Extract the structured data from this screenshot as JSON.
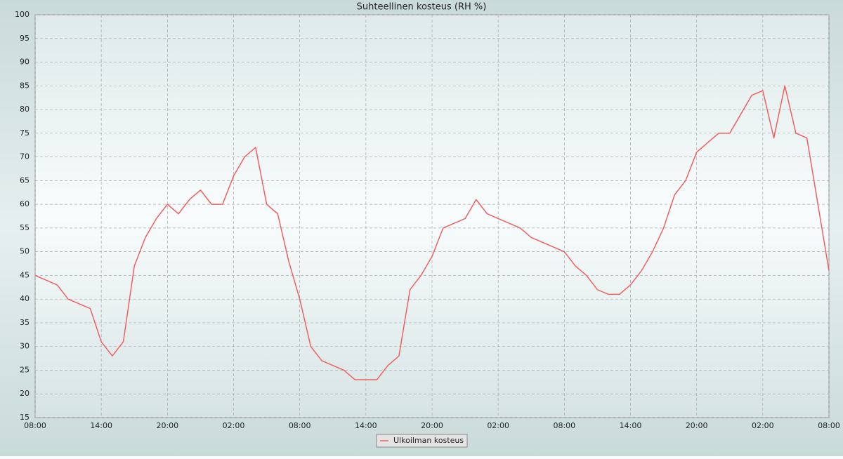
{
  "chart_data": {
    "type": "line",
    "title": "Suhteellinen kosteus (RH %)",
    "categories": [
      "08:00",
      null,
      null,
      null,
      null,
      null,
      "14:00",
      null,
      null,
      null,
      null,
      null,
      "20:00",
      null,
      null,
      null,
      null,
      null,
      "02:00",
      null,
      null,
      null,
      null,
      null,
      "08:00",
      null,
      null,
      null,
      null,
      null,
      "14:00",
      null,
      null,
      null,
      null,
      null,
      "20:00",
      null,
      null,
      null,
      null,
      null,
      "02:00",
      null,
      null,
      null,
      null,
      null,
      "08:00",
      null,
      null,
      null,
      null,
      null,
      "14:00",
      null,
      null,
      null,
      null,
      null,
      "20:00",
      null,
      null,
      null,
      null,
      null,
      "02:00",
      null,
      null,
      null,
      null,
      null,
      "08:00"
    ],
    "series": [
      {
        "name": "Ulkoilman kosteus",
        "color": "#f06060",
        "values": [
          45,
          44,
          43,
          40,
          39,
          38,
          31,
          28,
          31,
          47,
          53,
          57,
          60,
          58,
          61,
          63,
          60,
          60,
          66,
          70,
          72,
          60,
          58,
          48,
          40,
          30,
          27,
          26,
          25,
          23,
          23,
          23,
          26,
          28,
          42,
          45,
          49,
          55,
          56,
          57,
          61,
          58,
          57,
          56,
          55,
          53,
          52,
          51,
          50,
          47,
          45,
          42,
          41,
          41,
          43,
          46,
          50,
          55,
          62,
          65,
          71,
          73,
          75,
          75,
          79,
          83,
          84,
          74,
          85,
          75,
          74,
          60,
          46
        ]
      }
    ],
    "ylim": [
      15,
      100
    ],
    "yticks": [
      15,
      20,
      25,
      30,
      35,
      40,
      45,
      50,
      55,
      60,
      65,
      70,
      75,
      80,
      85,
      90,
      95,
      100
    ],
    "grid": true
  }
}
